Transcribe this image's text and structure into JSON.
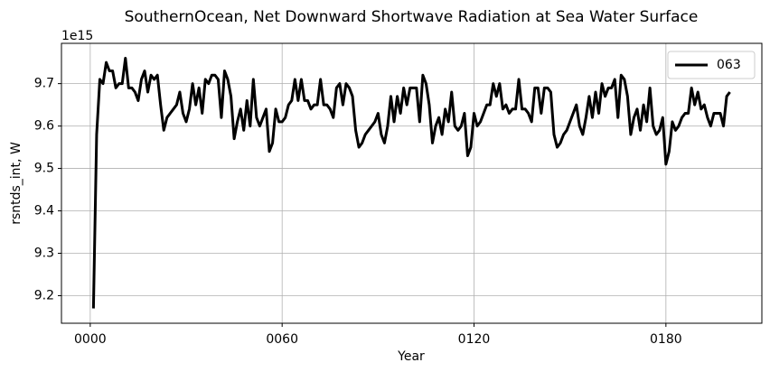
{
  "chart_data": {
    "type": "line",
    "title": "SouthernOcean, Net Downward Shortwave Radiation at Sea Water Surface",
    "x_label": "Year",
    "y_label": "rsntds_int, W",
    "y_offset_label": "1e15",
    "x": [
      1,
      2,
      3,
      4,
      5,
      6,
      7,
      8,
      9,
      10,
      11,
      12,
      13,
      14,
      15,
      16,
      17,
      18,
      19,
      20,
      21,
      22,
      23,
      24,
      25,
      26,
      27,
      28,
      29,
      30,
      31,
      32,
      33,
      34,
      35,
      36,
      37,
      38,
      39,
      40,
      41,
      42,
      43,
      44,
      45,
      46,
      47,
      48,
      49,
      50,
      51,
      52,
      53,
      54,
      55,
      56,
      57,
      58,
      59,
      60,
      61,
      62,
      63,
      64,
      65,
      66,
      67,
      68,
      69,
      70,
      71,
      72,
      73,
      74,
      75,
      76,
      77,
      78,
      79,
      80,
      81,
      82,
      83,
      84,
      85,
      86,
      87,
      88,
      89,
      90,
      91,
      92,
      93,
      94,
      95,
      96,
      97,
      98,
      99,
      100,
      101,
      102,
      103,
      104,
      105,
      106,
      107,
      108,
      109,
      110,
      111,
      112,
      113,
      114,
      115,
      116,
      117,
      118,
      119,
      120,
      121,
      122,
      123,
      124,
      125,
      126,
      127,
      128,
      129,
      130,
      131,
      132,
      133,
      134,
      135,
      136,
      137,
      138,
      139,
      140,
      141,
      142,
      143,
      144,
      145,
      146,
      147,
      148,
      149,
      150,
      151,
      152,
      153,
      154,
      155,
      156,
      157,
      158,
      159,
      160,
      161,
      162,
      163,
      164,
      165,
      166,
      167,
      168,
      169,
      170,
      171,
      172,
      173,
      174,
      175,
      176,
      177,
      178,
      179,
      180,
      181,
      182,
      183,
      184,
      185,
      186,
      187,
      188,
      189,
      190,
      191,
      192,
      193,
      194,
      195,
      196,
      197,
      198,
      199,
      200
    ],
    "series": [
      {
        "name": "063",
        "color": "#000000",
        "values": [
          9.17,
          9.58,
          9.71,
          9.7,
          9.75,
          9.73,
          9.73,
          9.69,
          9.7,
          9.7,
          9.76,
          9.69,
          9.69,
          9.68,
          9.66,
          9.71,
          9.73,
          9.68,
          9.72,
          9.71,
          9.72,
          9.65,
          9.59,
          9.62,
          9.63,
          9.64,
          9.65,
          9.68,
          9.63,
          9.61,
          9.64,
          9.7,
          9.65,
          9.69,
          9.63,
          9.71,
          9.7,
          9.72,
          9.72,
          9.71,
          9.62,
          9.73,
          9.71,
          9.67,
          9.57,
          9.61,
          9.64,
          9.59,
          9.66,
          9.6,
          9.71,
          9.62,
          9.6,
          9.62,
          9.64,
          9.54,
          9.56,
          9.64,
          9.61,
          9.61,
          9.62,
          9.65,
          9.66,
          9.71,
          9.66,
          9.71,
          9.66,
          9.66,
          9.64,
          9.65,
          9.65,
          9.71,
          9.65,
          9.65,
          9.64,
          9.62,
          9.69,
          9.7,
          9.65,
          9.7,
          9.69,
          9.67,
          9.59,
          9.55,
          9.56,
          9.58,
          9.59,
          9.6,
          9.61,
          9.63,
          9.58,
          9.56,
          9.6,
          9.67,
          9.61,
          9.67,
          9.63,
          9.69,
          9.65,
          9.69,
          9.69,
          9.69,
          9.61,
          9.72,
          9.7,
          9.65,
          9.56,
          9.6,
          9.62,
          9.58,
          9.64,
          9.61,
          9.68,
          9.6,
          9.59,
          9.6,
          9.63,
          9.53,
          9.55,
          9.63,
          9.6,
          9.61,
          9.63,
          9.65,
          9.65,
          9.7,
          9.67,
          9.7,
          9.64,
          9.65,
          9.63,
          9.64,
          9.64,
          9.71,
          9.64,
          9.64,
          9.63,
          9.61,
          9.69,
          9.69,
          9.63,
          9.69,
          9.69,
          9.68,
          9.58,
          9.55,
          9.56,
          9.58,
          9.59,
          9.61,
          9.63,
          9.65,
          9.6,
          9.58,
          9.62,
          9.67,
          9.62,
          9.68,
          9.63,
          9.7,
          9.67,
          9.69,
          9.69,
          9.71,
          9.62,
          9.72,
          9.71,
          9.67,
          9.58,
          9.62,
          9.64,
          9.59,
          9.65,
          9.61,
          9.69,
          9.6,
          9.58,
          9.59,
          9.62,
          9.51,
          9.54,
          9.61,
          9.59,
          9.6,
          9.62,
          9.63,
          9.63,
          9.69,
          9.65,
          9.68,
          9.64,
          9.65,
          9.62,
          9.6,
          9.63,
          9.63,
          9.63,
          9.6,
          9.67,
          9.68
        ]
      }
    ],
    "xlim": [
      -9,
      210
    ],
    "ylim": [
      9.135,
      9.795
    ],
    "xticks": [
      {
        "value": 0,
        "label": "0000"
      },
      {
        "value": 60,
        "label": "0060"
      },
      {
        "value": 120,
        "label": "0120"
      },
      {
        "value": 180,
        "label": "0180"
      }
    ],
    "yticks": [
      9.2,
      9.3,
      9.4,
      9.5,
      9.6,
      9.7
    ],
    "grid": true,
    "legend_position": "upper right"
  }
}
